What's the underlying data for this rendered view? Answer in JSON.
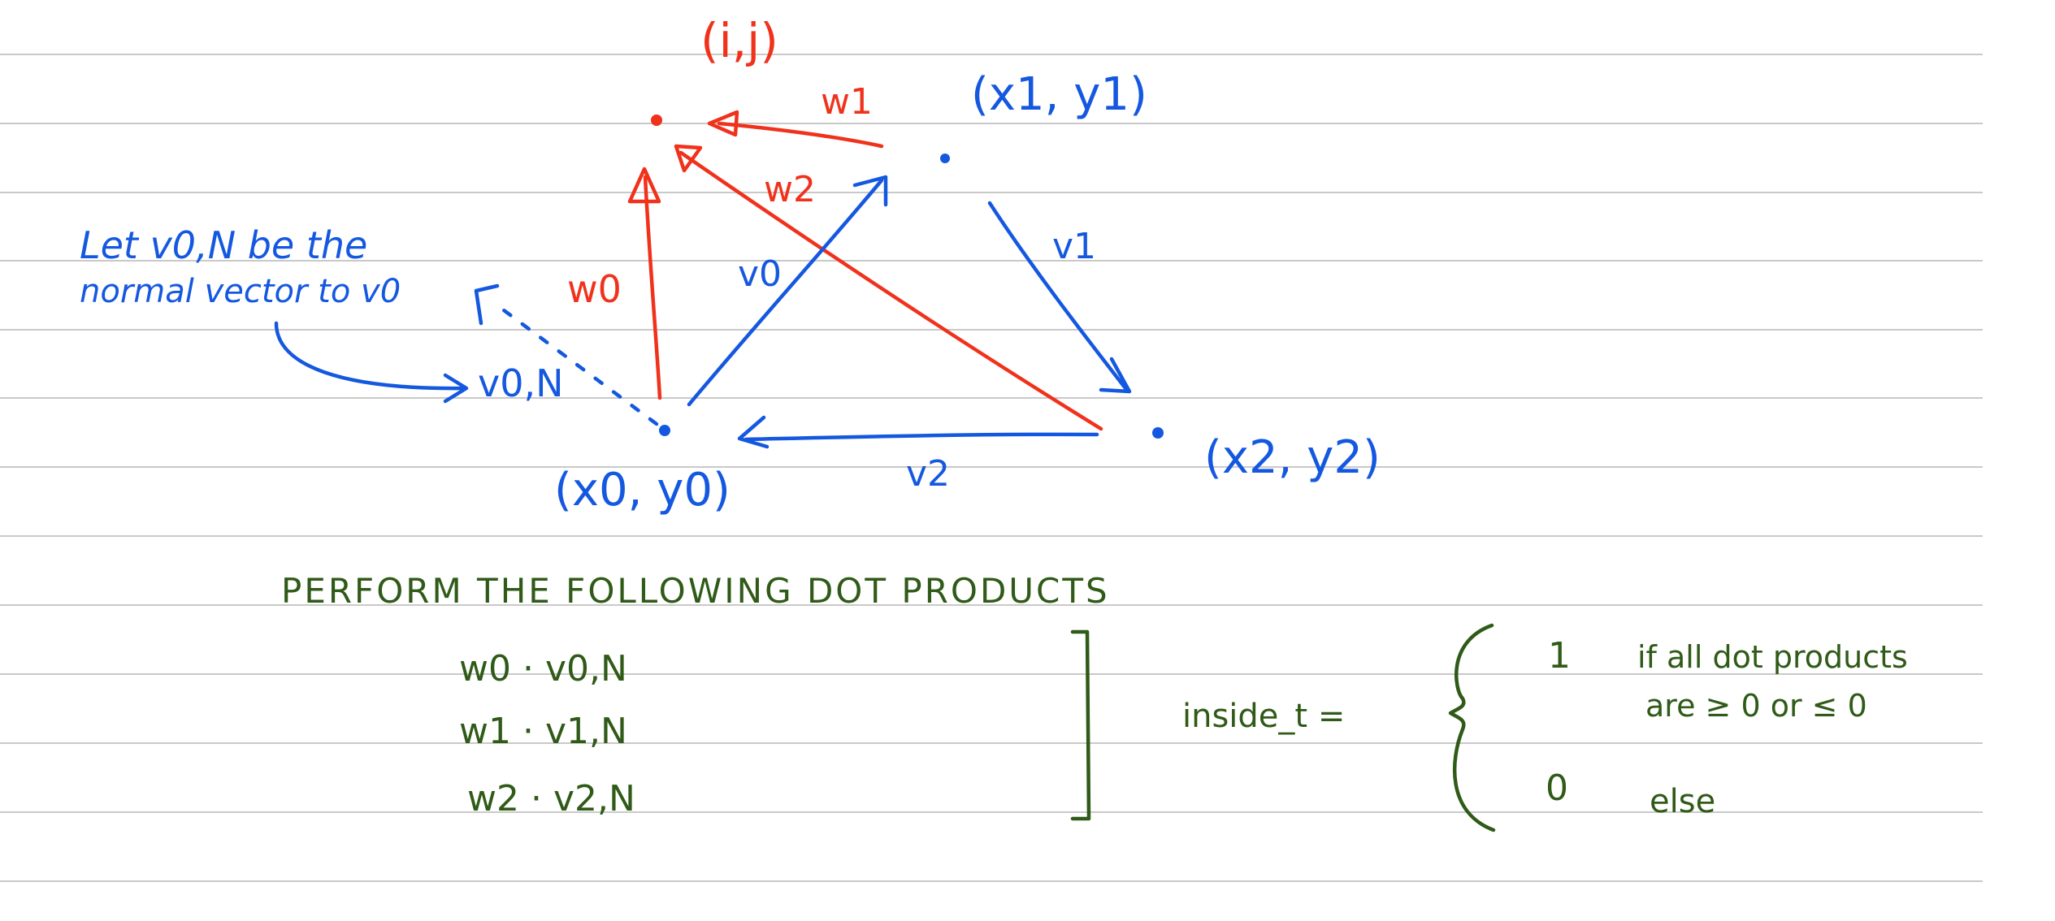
{
  "colors": {
    "blue": "#1558e0",
    "red": "#f0321c",
    "green": "#2f5a17",
    "rule_line": "#c9c9c9"
  },
  "diagram": {
    "point_ij": "(i,j)",
    "point_0": "(x0, y0)",
    "point_1": "(x1, y1)",
    "point_2": "(x2, y2)",
    "edge_v0": "v0",
    "edge_v1": "v1",
    "edge_v2": "v2",
    "vec_w0": "w0",
    "vec_w1": "w1",
    "vec_w2": "w2",
    "normal_label": "v0,N"
  },
  "note": {
    "line1": "Let v0,N be the",
    "line2": "normal vector to v0"
  },
  "instructions": {
    "heading": "PERFORM THE FOLLOWING DOT PRODUCTS",
    "products": [
      "w0 · v0,N",
      "w1 · v1,N",
      "w2 · v2,N"
    ]
  },
  "definition": {
    "lhs": "inside_t =",
    "case1_value": "1",
    "case1_cond_line1": "if  all dot products",
    "case1_cond_line2": "are ≥ 0  or  ≤ 0",
    "case2_value": "0",
    "case2_cond": "else"
  }
}
